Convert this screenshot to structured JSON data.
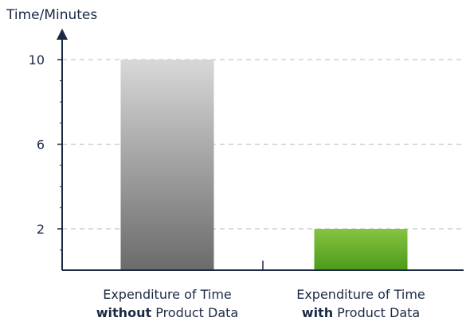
{
  "chart_data": {
    "type": "bar",
    "ylabel": "Time/Minutes",
    "xlabel": "",
    "title": "",
    "ylim": [
      0,
      12
    ],
    "yticks": [
      2,
      6,
      10
    ],
    "grid": true,
    "categories": [
      {
        "line1": "Expenditure of Time",
        "bold": "without",
        "rest": " Product Data"
      },
      {
        "line1": "Expenditure of Time",
        "bold": "with",
        "rest": " Product Data"
      }
    ],
    "values": [
      10,
      2
    ],
    "colors": {
      "bar1_top": "#d8d8d8",
      "bar1_bottom": "#6b6b6b",
      "bar2_top": "#86c440",
      "bar2_bottom": "#4c9a1c",
      "axis": "#1a2a44",
      "grid": "#c8c8c8"
    }
  }
}
